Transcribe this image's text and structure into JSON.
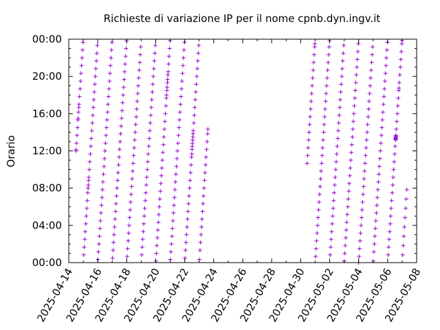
{
  "chart_data": {
    "type": "scatter",
    "title": "Richieste di variazione IP per il nome cpnb.dyn.ingv.it",
    "xlabel": "",
    "ylabel": "Orario",
    "x_range": [
      "2025-04-14",
      "2025-05-08"
    ],
    "y_range_hours": [
      0,
      24
    ],
    "x_ticks": [
      "2025-04-14",
      "2025-04-16",
      "2025-04-18",
      "2025-04-20",
      "2025-04-22",
      "2025-04-24",
      "2025-04-26",
      "2025-04-28",
      "2025-04-30",
      "2025-05-02",
      "2025-05-04",
      "2025-05-06",
      "2025-05-08"
    ],
    "y_ticks": [
      "00:00",
      "04:00",
      "08:00",
      "12:00",
      "16:00",
      "20:00",
      "00:00"
    ],
    "grid": false,
    "marker": "+",
    "marker_color": "#9400d3",
    "series": [
      {
        "points_by_day": [
          {
            "date": "2025-04-14",
            "times": [
              "12:00",
              "12:07",
              "12:50",
              "13:40",
              "14:30",
              "15:20",
              "15:30",
              "16:10",
              "16:40",
              "17:00",
              "17:50",
              "18:40",
              "19:30",
              "20:20",
              "21:10",
              "22:00",
              "22:50",
              "23:40"
            ]
          },
          {
            "date": "2025-04-15",
            "times": [
              "00:50",
              "01:40",
              "02:30",
              "03:20",
              "04:10",
              "05:00",
              "05:50",
              "06:40",
              "07:30",
              "08:00",
              "08:20",
              "08:50",
              "09:10",
              "10:00",
              "10:50",
              "11:40",
              "12:30",
              "13:20",
              "14:10",
              "15:00",
              "15:50",
              "16:40",
              "17:30",
              "18:20",
              "19:10",
              "20:00",
              "20:50",
              "21:40",
              "22:30",
              "23:20"
            ]
          },
          {
            "date": "2025-04-16",
            "times": [
              "00:20",
              "01:10",
              "02:00",
              "02:50",
              "03:40",
              "04:30",
              "05:20",
              "06:10",
              "07:00",
              "07:50",
              "08:40",
              "09:30",
              "10:20",
              "11:10",
              "12:00",
              "12:50",
              "13:40",
              "14:30",
              "15:20",
              "16:10",
              "17:00",
              "17:50",
              "18:40",
              "19:30",
              "20:20",
              "21:10",
              "22:00",
              "22:50",
              "23:40"
            ]
          },
          {
            "date": "2025-04-17",
            "times": [
              "00:30",
              "01:20",
              "02:10",
              "03:00",
              "03:50",
              "04:40",
              "05:30",
              "06:20",
              "07:10",
              "08:00",
              "08:50",
              "09:40",
              "10:30",
              "11:20",
              "12:10",
              "13:00",
              "13:50",
              "14:40",
              "15:30",
              "16:20",
              "17:10",
              "18:00",
              "18:50",
              "19:40",
              "20:30",
              "21:20",
              "22:10",
              "23:00",
              "23:50"
            ]
          },
          {
            "date": "2025-04-18",
            "times": [
              "00:40",
              "01:30",
              "02:20",
              "03:10",
              "04:00",
              "04:50",
              "05:40",
              "06:30",
              "07:20",
              "08:10",
              "09:00",
              "09:50",
              "10:40",
              "11:30",
              "12:20",
              "13:10",
              "14:00",
              "14:50",
              "15:40",
              "16:30",
              "17:20",
              "18:10",
              "19:00",
              "19:50",
              "20:40",
              "21:30",
              "22:20",
              "23:10"
            ]
          },
          {
            "date": "2025-04-19",
            "times": [
              "00:50",
              "01:40",
              "02:30",
              "03:20",
              "04:10",
              "05:00",
              "05:50",
              "06:40",
              "07:30",
              "08:20",
              "09:10",
              "10:00",
              "10:50",
              "11:40",
              "12:30",
              "13:20",
              "14:10",
              "15:00",
              "15:50",
              "16:40",
              "17:30",
              "18:20",
              "19:10",
              "20:00",
              "20:50",
              "21:40",
              "22:30",
              "23:20"
            ]
          },
          {
            "date": "2025-04-20",
            "times": [
              "00:10",
              "01:00",
              "01:50",
              "02:40",
              "03:30",
              "04:20",
              "05:10",
              "06:00",
              "06:50",
              "07:40",
              "08:30",
              "09:20",
              "10:10",
              "11:00",
              "11:50",
              "12:40",
              "13:30",
              "14:20",
              "15:10",
              "16:00",
              "16:50",
              "17:40",
              "18:00",
              "18:30",
              "18:50",
              "19:20",
              "19:40",
              "20:10",
              "20:30",
              "21:20",
              "22:10",
              "23:00",
              "23:50"
            ]
          },
          {
            "date": "2025-04-21",
            "times": [
              "00:20",
              "01:10",
              "02:00",
              "02:50",
              "03:40",
              "04:30",
              "05:20",
              "06:10",
              "07:00",
              "07:50",
              "08:40",
              "09:30",
              "10:20",
              "11:10",
              "12:00",
              "12:50",
              "13:40",
              "14:30",
              "15:20",
              "16:10",
              "17:00",
              "17:50",
              "18:40",
              "19:30",
              "20:20",
              "21:10",
              "22:00",
              "22:50",
              "23:40"
            ]
          },
          {
            "date": "2025-04-22",
            "times": [
              "00:30",
              "01:20",
              "02:10",
              "03:00",
              "03:50",
              "04:40",
              "05:30",
              "06:20",
              "07:10",
              "08:00",
              "08:50",
              "09:40",
              "10:30",
              "11:20",
              "11:40",
              "12:10",
              "12:30",
              "12:50",
              "13:10",
              "13:30",
              "13:50",
              "14:10",
              "15:00",
              "15:50",
              "16:40",
              "17:30",
              "18:20",
              "19:10",
              "20:00",
              "20:50",
              "21:40",
              "22:30",
              "23:20"
            ]
          },
          {
            "date": "2025-04-23",
            "times": [
              "00:20",
              "01:20",
              "02:10",
              "03:00",
              "03:50",
              "04:40",
              "05:30",
              "06:20",
              "07:10",
              "08:00",
              "08:50",
              "09:40",
              "10:30",
              "11:20",
              "12:10",
              "13:00",
              "13:50",
              "14:20"
            ]
          },
          {
            "date": "2025-04-30",
            "times": [
              "10:40",
              "11:30",
              "12:20",
              "13:10",
              "14:00",
              "14:50",
              "15:40",
              "16:30",
              "17:20",
              "18:10",
              "19:00",
              "19:50",
              "20:40",
              "21:30",
              "22:20",
              "23:10",
              "23:30"
            ]
          },
          {
            "date": "2025-05-01",
            "times": [
              "00:40",
              "01:30",
              "02:20",
              "03:10",
              "04:00",
              "04:50",
              "05:40",
              "06:30",
              "07:20",
              "08:10",
              "09:00",
              "09:50",
              "10:40",
              "11:30",
              "12:20",
              "13:10",
              "14:00",
              "14:50",
              "15:40",
              "16:30",
              "17:20",
              "18:10",
              "19:00",
              "19:50",
              "20:40",
              "21:30",
              "22:20",
              "23:10",
              "23:50"
            ]
          },
          {
            "date": "2025-05-02",
            "times": [
              "00:50",
              "01:40",
              "02:30",
              "03:20",
              "04:10",
              "05:00",
              "05:50",
              "06:40",
              "07:30",
              "08:20",
              "09:10",
              "10:00",
              "10:50",
              "11:40",
              "12:30",
              "13:20",
              "14:10",
              "15:00",
              "15:50",
              "16:40",
              "17:30",
              "18:20",
              "19:10",
              "20:00",
              "20:50",
              "21:40",
              "22:30",
              "23:20"
            ]
          },
          {
            "date": "2025-05-03",
            "times": [
              "00:10",
              "01:00",
              "01:50",
              "02:40",
              "03:30",
              "04:20",
              "05:10",
              "06:00",
              "06:50",
              "07:40",
              "08:30",
              "09:20",
              "10:10",
              "11:00",
              "11:50",
              "12:40",
              "13:30",
              "14:20",
              "15:10",
              "16:00",
              "16:50",
              "17:40",
              "18:30",
              "19:20",
              "20:10",
              "21:00",
              "21:50",
              "22:40",
              "23:30"
            ]
          },
          {
            "date": "2025-05-04",
            "times": [
              "00:00",
              "00:40",
              "01:30",
              "02:20",
              "03:10",
              "04:00",
              "04:50",
              "05:40",
              "06:30",
              "07:20",
              "08:10",
              "09:00",
              "09:50",
              "10:40",
              "11:30",
              "12:20",
              "13:10",
              "14:00",
              "14:50",
              "15:40",
              "16:30",
              "17:20",
              "18:10",
              "19:00",
              "19:50",
              "20:40",
              "21:30",
              "22:20",
              "23:10"
            ]
          },
          {
            "date": "2025-05-05",
            "times": [
              "00:10",
              "01:10",
              "02:00",
              "02:50",
              "03:40",
              "04:30",
              "05:20",
              "06:10",
              "07:00",
              "07:50",
              "08:40",
              "09:30",
              "10:20",
              "11:10",
              "12:00",
              "12:50",
              "13:40",
              "14:30",
              "15:20",
              "16:10",
              "17:00",
              "17:50",
              "18:40",
              "19:30",
              "20:20",
              "21:10",
              "22:00",
              "22:50",
              "23:40"
            ]
          },
          {
            "date": "2025-05-06",
            "times": [
              "00:50",
              "01:40",
              "02:30",
              "03:20",
              "04:10",
              "05:00",
              "05:50",
              "06:40",
              "07:30",
              "08:20",
              "09:10",
              "10:00",
              "10:50",
              "11:40",
              "12:30",
              "13:10",
              "13:15",
              "13:20",
              "13:25",
              "13:30",
              "13:35",
              "13:40",
              "14:20",
              "15:10",
              "16:00",
              "16:50",
              "17:40",
              "18:30",
              "18:45",
              "19:20",
              "20:10",
              "21:00",
              "21:50",
              "22:40",
              "23:30",
              "23:50"
            ]
          },
          {
            "date": "2025-05-07",
            "times": [
              "00:50",
              "01:50",
              "02:50",
              "03:50",
              "04:50",
              "05:50",
              "06:50",
              "07:50"
            ]
          }
        ]
      }
    ]
  }
}
